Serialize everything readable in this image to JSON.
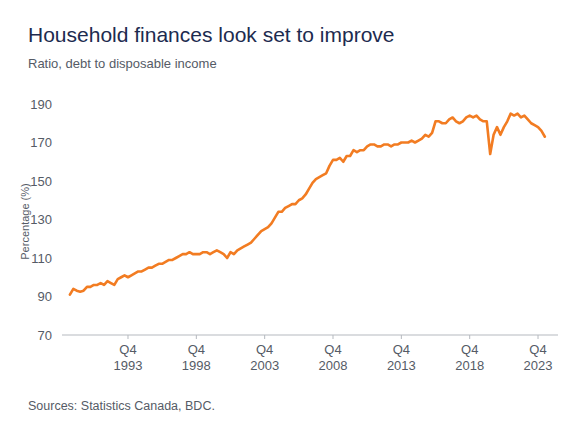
{
  "chart_data": {
    "type": "line",
    "title": "Household finances look set to improve",
    "subtitle": "Ratio, debt to disposable income",
    "y_label": "Percentage (%)",
    "source": "Sources: Statistics Canada, BDC.",
    "categories": [
      null,
      null,
      null,
      null,
      null,
      null,
      null,
      null,
      null,
      null,
      null,
      null,
      null,
      null,
      null,
      null,
      null,
      "Q4 1993",
      null,
      null,
      null,
      null,
      null,
      null,
      null,
      null,
      null,
      null,
      null,
      null,
      null,
      null,
      null,
      null,
      null,
      null,
      null,
      "Q4 1998",
      null,
      null,
      null,
      null,
      null,
      null,
      null,
      null,
      null,
      null,
      null,
      null,
      null,
      null,
      null,
      null,
      null,
      null,
      null,
      "Q4 2003",
      null,
      null,
      null,
      null,
      null,
      null,
      null,
      null,
      null,
      null,
      null,
      null,
      null,
      null,
      null,
      null,
      null,
      null,
      null,
      "Q4 2008",
      null,
      null,
      null,
      null,
      null,
      null,
      null,
      null,
      null,
      null,
      null,
      null,
      null,
      null,
      null,
      null,
      null,
      null,
      null,
      "Q4 2013",
      null,
      null,
      null,
      null,
      null,
      null,
      null,
      null,
      null,
      null,
      null,
      null,
      null,
      null,
      null,
      null,
      null,
      null,
      null,
      "Q4 2018",
      null,
      null,
      null,
      null,
      null,
      null,
      null,
      null,
      null,
      null,
      null,
      null,
      null,
      null,
      null,
      null,
      null,
      null,
      null,
      "Q4 2023",
      null,
      null
    ],
    "values": [
      91,
      94,
      93,
      92.5,
      93,
      95,
      95,
      96,
      96,
      97,
      96,
      98,
      97,
      96,
      99,
      100,
      101,
      100,
      101,
      102,
      103,
      103,
      104,
      105,
      105,
      106,
      107,
      107,
      108,
      109,
      109,
      110,
      111,
      112,
      112,
      113,
      112,
      112,
      112,
      113,
      113,
      112,
      113,
      114,
      113,
      112,
      110,
      113,
      112,
      114,
      115,
      116,
      117,
      118,
      120,
      122,
      124,
      125,
      126,
      128,
      131,
      134,
      134,
      136,
      137,
      138,
      138,
      140,
      141,
      143,
      146,
      149,
      151,
      152,
      153,
      154,
      158,
      161,
      161,
      162,
      160,
      163,
      163,
      166,
      165,
      166,
      166,
      168,
      169,
      169,
      168,
      168,
      169,
      169,
      168,
      169,
      169,
      170,
      170,
      170,
      171,
      170,
      171,
      172,
      174,
      173,
      175,
      181,
      181,
      180,
      180,
      182,
      183,
      181,
      180,
      181,
      183,
      184,
      183,
      184,
      182,
      181,
      181,
      164,
      174,
      178,
      174,
      178,
      181,
      185,
      184,
      185,
      183,
      184,
      182,
      180,
      179,
      178,
      176,
      173
    ],
    "color": "#f27c22",
    "ylim": [
      70,
      190
    ],
    "yticks": [
      70,
      90,
      110,
      130,
      150,
      170,
      190
    ],
    "grid": false
  }
}
